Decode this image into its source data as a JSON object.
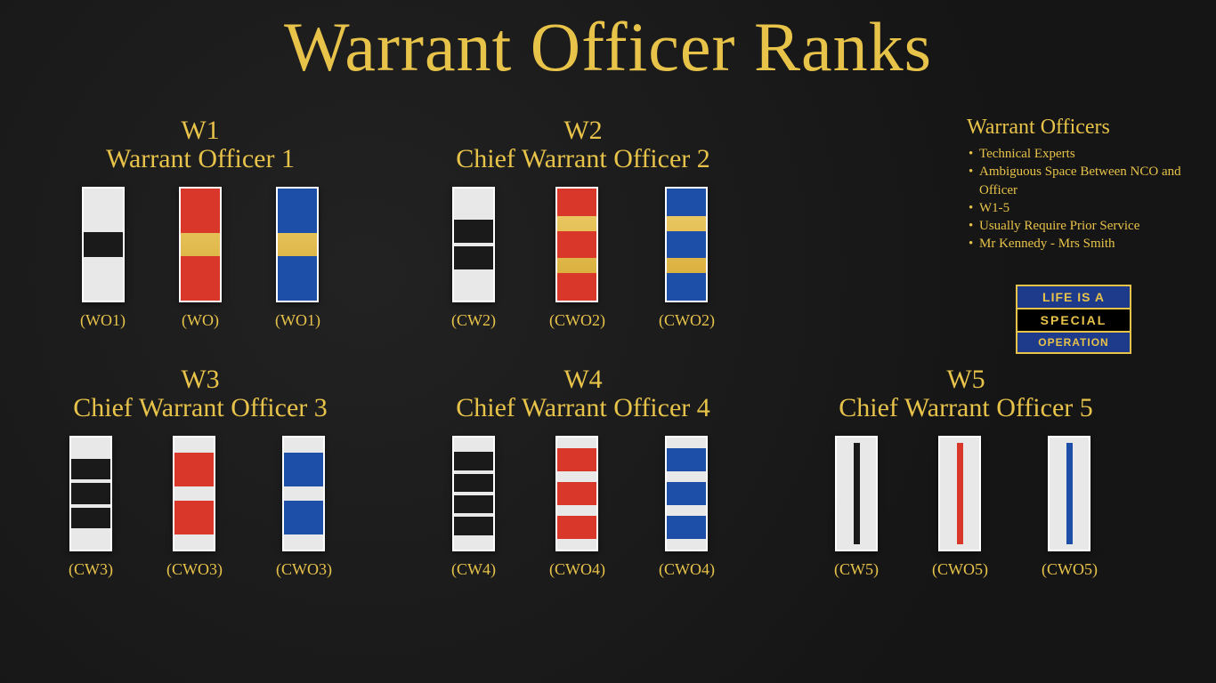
{
  "title": "Warrant Officer Ranks",
  "colors": {
    "silver": "#e8e8e8",
    "gold": "#e8c34a",
    "gold_grad_top": "#f0d070",
    "gold_grad_bot": "#d4a830",
    "black": "#1a1a1a",
    "red": "#d8372a",
    "blue": "#1e4fa8",
    "darkblue": "#123a85",
    "border": "#ffffff"
  },
  "ranks": [
    {
      "paygrade": "W1",
      "title": "Warrant Officer 1",
      "insignias": [
        {
          "bg": "silver",
          "squares": 1,
          "square_color": "black",
          "abbrev": "(WO1)"
        },
        {
          "bg": "gold",
          "squares": 1,
          "square_color": "red",
          "style": "break",
          "abbrev": "(WO)"
        },
        {
          "bg": "gold",
          "squares": 1,
          "square_color": "blue",
          "style": "break",
          "abbrev": "(WO1)"
        }
      ]
    },
    {
      "paygrade": "W2",
      "title": "Chief Warrant Officer 2",
      "insignias": [
        {
          "bg": "silver",
          "squares": 2,
          "square_color": "black",
          "abbrev": "(CW2)"
        },
        {
          "bg": "gold",
          "squares": 2,
          "square_color": "red",
          "style": "break",
          "abbrev": "(CWO2)"
        },
        {
          "bg": "gold",
          "squares": 2,
          "square_color": "blue",
          "style": "break",
          "abbrev": "(CWO2)"
        }
      ]
    },
    {
      "placeholder": true
    },
    {
      "paygrade": "W3",
      "title": "Chief Warrant Officer 3",
      "insignias": [
        {
          "bg": "silver",
          "squares": 3,
          "square_color": "black",
          "abbrev": "(CW3)"
        },
        {
          "bg": "silver",
          "squares": 2,
          "square_color": "red",
          "style": "break",
          "abbrev": "(CWO3)"
        },
        {
          "bg": "silver",
          "squares": 2,
          "square_color": "blue",
          "style": "break",
          "abbrev": "(CWO3)"
        }
      ]
    },
    {
      "paygrade": "W4",
      "title": "Chief Warrant Officer 4",
      "insignias": [
        {
          "bg": "silver",
          "squares": 4,
          "square_color": "black",
          "abbrev": "(CW4)"
        },
        {
          "bg": "silver",
          "squares": 3,
          "square_color": "red",
          "style": "break",
          "abbrev": "(CWO4)"
        },
        {
          "bg": "silver",
          "squares": 3,
          "square_color": "blue",
          "style": "break",
          "abbrev": "(CWO4)"
        }
      ]
    },
    {
      "paygrade": "W5",
      "title": "Chief Warrant Officer 5",
      "insignias": [
        {
          "bg": "silver",
          "vbar": true,
          "vbar_color": "black",
          "abbrev": "(CW5)"
        },
        {
          "bg": "silver",
          "vbar": true,
          "vbar_color": "red",
          "abbrev": "(CWO5)"
        },
        {
          "bg": "silver",
          "vbar": true,
          "vbar_color": "blue",
          "abbrev": "(CWO5)"
        }
      ]
    }
  ],
  "sidebar": {
    "title": "Warrant Officers",
    "items": [
      "Technical Experts",
      "Ambiguous Space Between NCO and Officer",
      "W1-5",
      "Usually Require Prior Service",
      "Mr Kennedy - Mrs Smith"
    ]
  },
  "logo": {
    "line1": "LIFE IS A",
    "line2": "SPECIAL",
    "line3": "OPERATION"
  }
}
